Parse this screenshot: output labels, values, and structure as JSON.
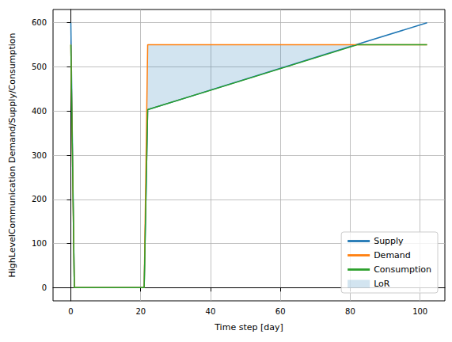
{
  "chart_data": {
    "type": "line",
    "xlabel": "Time step [day]",
    "ylabel": "HighLevelCommunication Demand/Supply/Consumption",
    "x": [
      0,
      1,
      21,
      22,
      82,
      102
    ],
    "series": [
      {
        "name": "Supply",
        "color": "#1f77b4",
        "values": [
          600,
          0,
          0,
          403,
          551,
          600
        ]
      },
      {
        "name": "Demand",
        "color": "#ff7f0e",
        "values": [
          550,
          0,
          0,
          550,
          550,
          550
        ]
      },
      {
        "name": "Consumption",
        "color": "#2ca02c",
        "values": [
          550,
          0,
          0,
          403,
          550,
          550
        ]
      },
      {
        "name": "LoR",
        "type": "fill_between",
        "color": "#1f77b4",
        "between": [
          "Demand",
          "Consumption"
        ]
      }
    ],
    "xlim": [
      -5.1,
      107.1
    ],
    "xticks": [
      0,
      20,
      40,
      60,
      80,
      100
    ],
    "ylim": [
      -30,
      630
    ],
    "yticks": [
      0,
      100,
      200,
      300,
      400,
      500,
      600
    ],
    "grid": true,
    "legend": "lower right"
  }
}
